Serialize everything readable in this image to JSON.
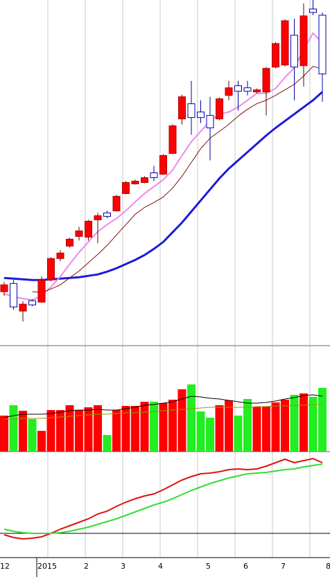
{
  "chart_data": [
    {
      "type": "candlestick",
      "ylim": [
        0,
        500
      ],
      "up_color": "#ff0000",
      "down_color": "#ffffff",
      "down_border": "#0000aa",
      "open": [
        78,
        90,
        50,
        65,
        63,
        95,
        126,
        144,
        158,
        157,
        182,
        192,
        195,
        220,
        234,
        236,
        250,
        248,
        278,
        328,
        350,
        338,
        333,
        328,
        362,
        376,
        373,
        367,
        367,
        403,
        406,
        449,
        405,
        487,
        478
      ],
      "high": [
        92,
        95,
        64,
        67,
        100,
        128,
        138,
        156,
        172,
        182,
        192,
        195,
        218,
        238,
        240,
        245,
        260,
        277,
        320,
        363,
        383,
        355,
        360,
        359,
        383,
        383,
        383,
        372,
        403,
        439,
        472,
        473,
        495,
        500,
        482
      ],
      "low": [
        72,
        52,
        35,
        57,
        62,
        93,
        122,
        142,
        152,
        152,
        148,
        184,
        194,
        219,
        233,
        235,
        238,
        247,
        277,
        320,
        305,
        322,
        268,
        326,
        355,
        340,
        362,
        365,
        333,
        401,
        404,
        355,
        375,
        478,
        353
      ],
      "close": [
        88,
        56,
        60,
        59,
        95,
        126,
        134,
        154,
        166,
        180,
        188,
        187,
        216,
        236,
        238,
        243,
        243,
        275,
        318,
        360,
        330,
        330,
        315,
        357,
        373,
        368,
        368,
        370,
        401,
        437,
        470,
        403,
        477,
        482,
        393
      ],
      "series": [
        {
          "color": "#1a1adc",
          "width": 3,
          "values": [
            98,
            97,
            96,
            95,
            95,
            96,
            97,
            98,
            99,
            101,
            103,
            107,
            112,
            118,
            124,
            131,
            140,
            150,
            164,
            178,
            194,
            210,
            226,
            242,
            256,
            268,
            280,
            292,
            304,
            315,
            325,
            335,
            345,
            355,
            367
          ]
        },
        {
          "color": "#ee88ee",
          "width": 2,
          "values": [
            75,
            71,
            68,
            66,
            72,
            85,
            100,
            118,
            135,
            150,
            165,
            175,
            184,
            195,
            208,
            220,
            230,
            240,
            254,
            275,
            295,
            310,
            325,
            335,
            338,
            345,
            355,
            365,
            365,
            372,
            388,
            402,
            428,
            452,
            438
          ]
        },
        {
          "color": "#7a1010",
          "width": 1,
          "values": [
            null,
            null,
            null,
            78,
            77,
            82,
            88,
            98,
            108,
            120,
            132,
            145,
            160,
            175,
            190,
            200,
            207,
            215,
            228,
            245,
            265,
            285,
            300,
            310,
            320,
            332,
            342,
            350,
            355,
            362,
            370,
            378,
            390,
            404,
            400
          ]
        }
      ]
    },
    {
      "type": "bar",
      "ylim": [
        0,
        152
      ],
      "up_color": "#ff0000",
      "down_color": "#22ee22",
      "values": [
        52,
        67,
        59,
        47,
        30,
        60,
        60,
        67,
        60,
        64,
        67,
        24,
        60,
        66,
        66,
        72,
        72,
        70,
        75,
        90,
        97,
        58,
        49,
        67,
        74,
        52,
        76,
        65,
        65,
        71,
        75,
        82,
        84,
        79,
        92
      ],
      "series": [
        {
          "color": "#000000",
          "width": 1,
          "values": [
            49,
            52,
            54,
            54,
            54,
            55,
            57,
            59,
            60,
            60,
            61,
            60,
            60,
            62,
            64,
            67,
            68,
            70,
            72,
            76,
            80,
            79,
            77,
            76,
            74,
            72,
            70,
            70,
            71,
            73,
            76,
            78,
            81,
            82,
            80
          ]
        },
        {
          "color": "#999900",
          "width": 1,
          "values": [
            47,
            47,
            48,
            48,
            48,
            49,
            50,
            51,
            52,
            53,
            54,
            54,
            55,
            56,
            56,
            57,
            58,
            59,
            60,
            61,
            62,
            63,
            64,
            64,
            64,
            64,
            64,
            65,
            65,
            66,
            66,
            67,
            67,
            68,
            68
          ]
        }
      ]
    },
    {
      "type": "line",
      "ylim": [
        -35,
        118
      ],
      "series": [
        {
          "color": "#dd1111",
          "width": 2,
          "values": [
            -2,
            -6,
            -8,
            -7,
            -5,
            0,
            6,
            11,
            16,
            21,
            28,
            32,
            39,
            45,
            50,
            54,
            57,
            63,
            70,
            77,
            82,
            86,
            87,
            89,
            92,
            93,
            92,
            93,
            97,
            102,
            107,
            102,
            105,
            108,
            102
          ]
        },
        {
          "color": "#33dd33",
          "width": 2,
          "values": [
            6,
            3,
            1,
            0,
            0,
            0,
            1,
            3,
            6,
            9,
            13,
            17,
            21,
            26,
            31,
            36,
            41,
            45,
            50,
            56,
            62,
            67,
            72,
            76,
            80,
            83,
            86,
            87,
            88,
            90,
            92,
            93,
            96,
            98,
            100
          ]
        }
      ],
      "x_labels": [
        "12",
        "2015",
        "2",
        "3",
        "4",
        "5",
        "6",
        "7",
        "8"
      ]
    }
  ]
}
